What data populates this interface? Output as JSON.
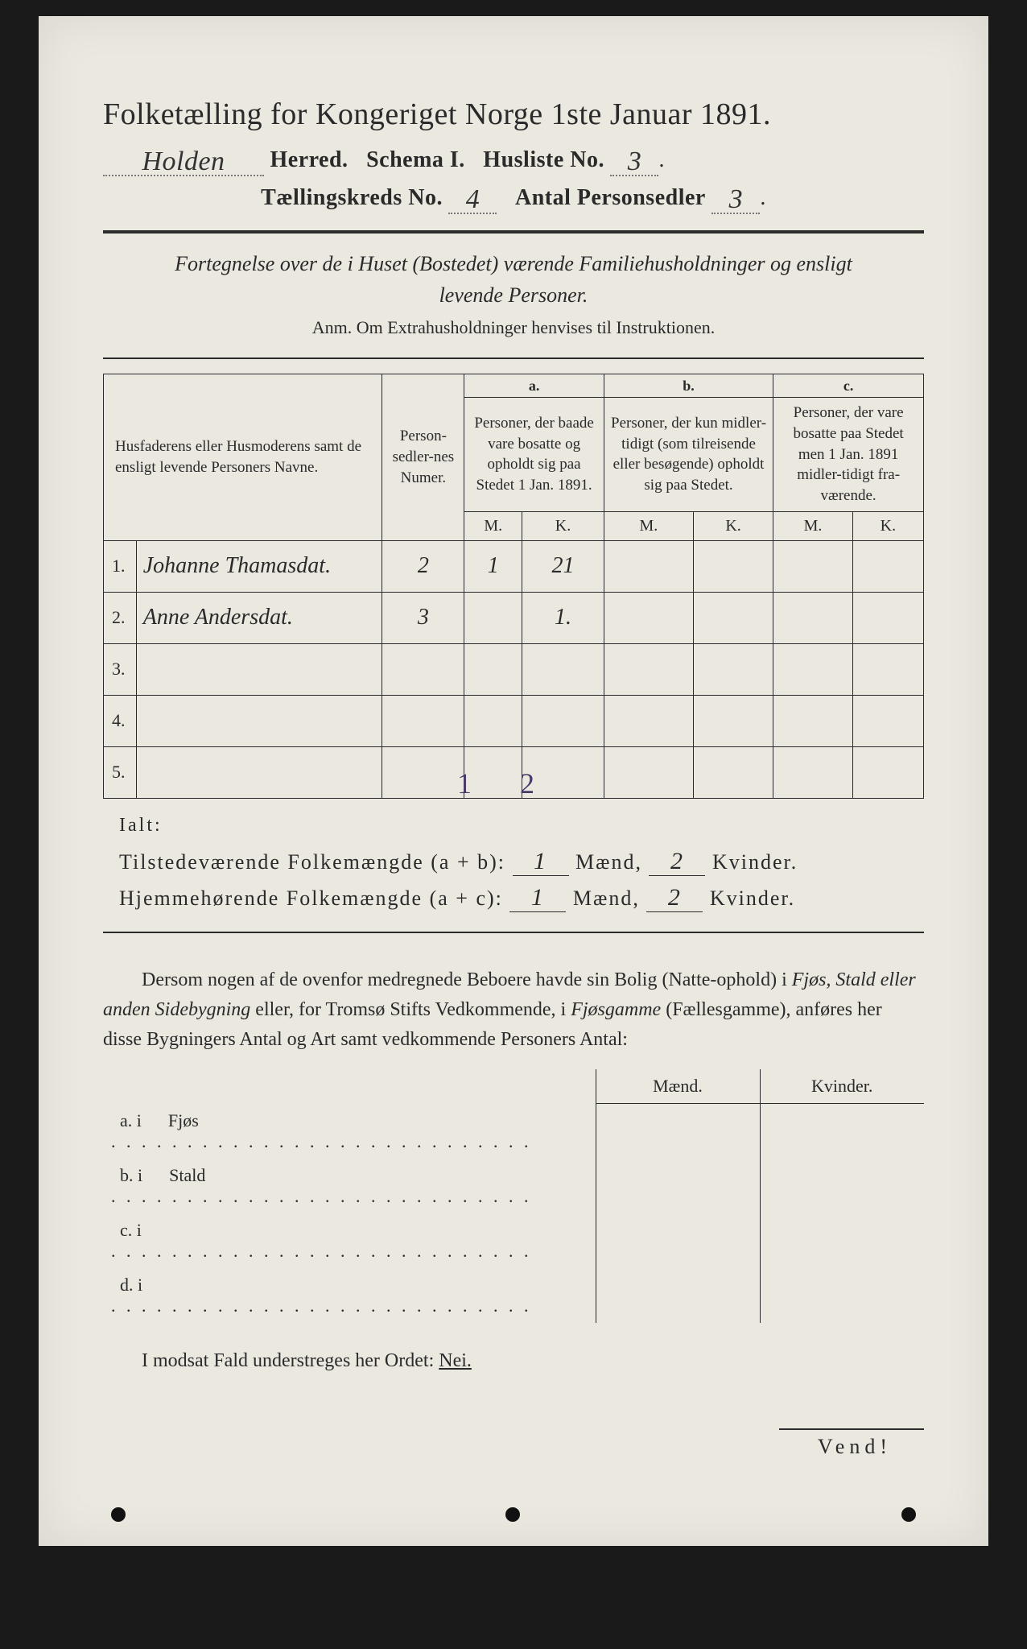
{
  "header": {
    "title": "Folketælling for Kongeriget Norge 1ste Januar 1891.",
    "herred_value": "Holden",
    "herred_label": "Herred.",
    "schema_label": "Schema I.",
    "husliste_label": "Husliste No.",
    "husliste_value": "3",
    "kreds_label": "Tællingskreds No.",
    "kreds_value": "4",
    "antal_label": "Antal Personsedler",
    "antal_value": "3"
  },
  "fortegnelse": {
    "line1": "Fortegnelse over de i Huset (Bostedet) værende Familiehusholdninger og ensligt",
    "line2": "levende Personer.",
    "anm": "Anm.  Om Extrahusholdninger henvises til Instruktionen."
  },
  "table": {
    "col_name": "Husfaderens eller Husmoderens samt de ensligt levende Personers Navne.",
    "col_num": "Person-sedler-nes Numer.",
    "col_a_letter": "a.",
    "col_a": "Personer, der baade vare bosatte og opholdt sig paa Stedet 1 Jan. 1891.",
    "col_b_letter": "b.",
    "col_b": "Personer, der kun midler-tidigt (som tilreisende eller besøgende) opholdt sig paa Stedet.",
    "col_c_letter": "c.",
    "col_c": "Personer, der vare bosatte paa Stedet men 1 Jan. 1891 midler-tidigt fra-værende.",
    "m": "M.",
    "k": "K.",
    "rows": [
      {
        "n": "1.",
        "name": "Johanne Thamasdat.",
        "num": "2",
        "am": "1",
        "ak": "21",
        "bm": "",
        "bk": "",
        "cm": "",
        "ck": ""
      },
      {
        "n": "2.",
        "name": "Anne Andersdat.",
        "num": "3",
        "am": "",
        "ak": "1.",
        "bm": "",
        "bk": "",
        "cm": "",
        "ck": ""
      },
      {
        "n": "3.",
        "name": "",
        "num": "",
        "am": "",
        "ak": "",
        "bm": "",
        "bk": "",
        "cm": "",
        "ck": ""
      },
      {
        "n": "4.",
        "name": "",
        "num": "",
        "am": "",
        "ak": "",
        "bm": "",
        "bk": "",
        "cm": "",
        "ck": ""
      },
      {
        "n": "5.",
        "name": "",
        "num": "",
        "am": "",
        "ak": "",
        "bm": "",
        "bk": "",
        "cm": "",
        "ck": ""
      }
    ],
    "ialt_label": "Ialt:",
    "ialt_m": "1",
    "ialt_k": "2"
  },
  "sums": {
    "line1_label": "Tilstedeværende Folkemængde (a + b):",
    "line1_m": "1",
    "line1_k": "2",
    "line2_label": "Hjemmehørende Folkemængde (a + c):",
    "line2_m": "1",
    "line2_k": "2",
    "maend": "Mænd,",
    "kvinder": "Kvinder."
  },
  "body": {
    "text1": "Dersom nogen af de ovenfor medregnede Beboere havde sin Bolig (Natte-ophold) i ",
    "ital1": "Fjøs, Stald eller anden Sidebygning",
    "text2": " eller, for Tromsø Stifts Vedkommende, i ",
    "ital2": "Fjøsgamme",
    "text3": " (Fællesgamme), anføres her disse Bygningers Antal og Art samt vedkommende Personers Antal:",
    "maend": "Mænd.",
    "kvinder": "Kvinder.",
    "rows": [
      {
        "l": "a.   i",
        "t": "Fjøs"
      },
      {
        "l": "b.   i",
        "t": "Stald"
      },
      {
        "l": "c.   i",
        "t": ""
      },
      {
        "l": "d.   i",
        "t": ""
      }
    ]
  },
  "footer": {
    "line": "I modsat Fald understreges her Ordet: ",
    "nei": "Nei.",
    "vend": "Vend!"
  },
  "style": {
    "page_bg": "#ebe8e0",
    "text_color": "#2a2a2a",
    "ialt_color": "#4a3a6a"
  }
}
